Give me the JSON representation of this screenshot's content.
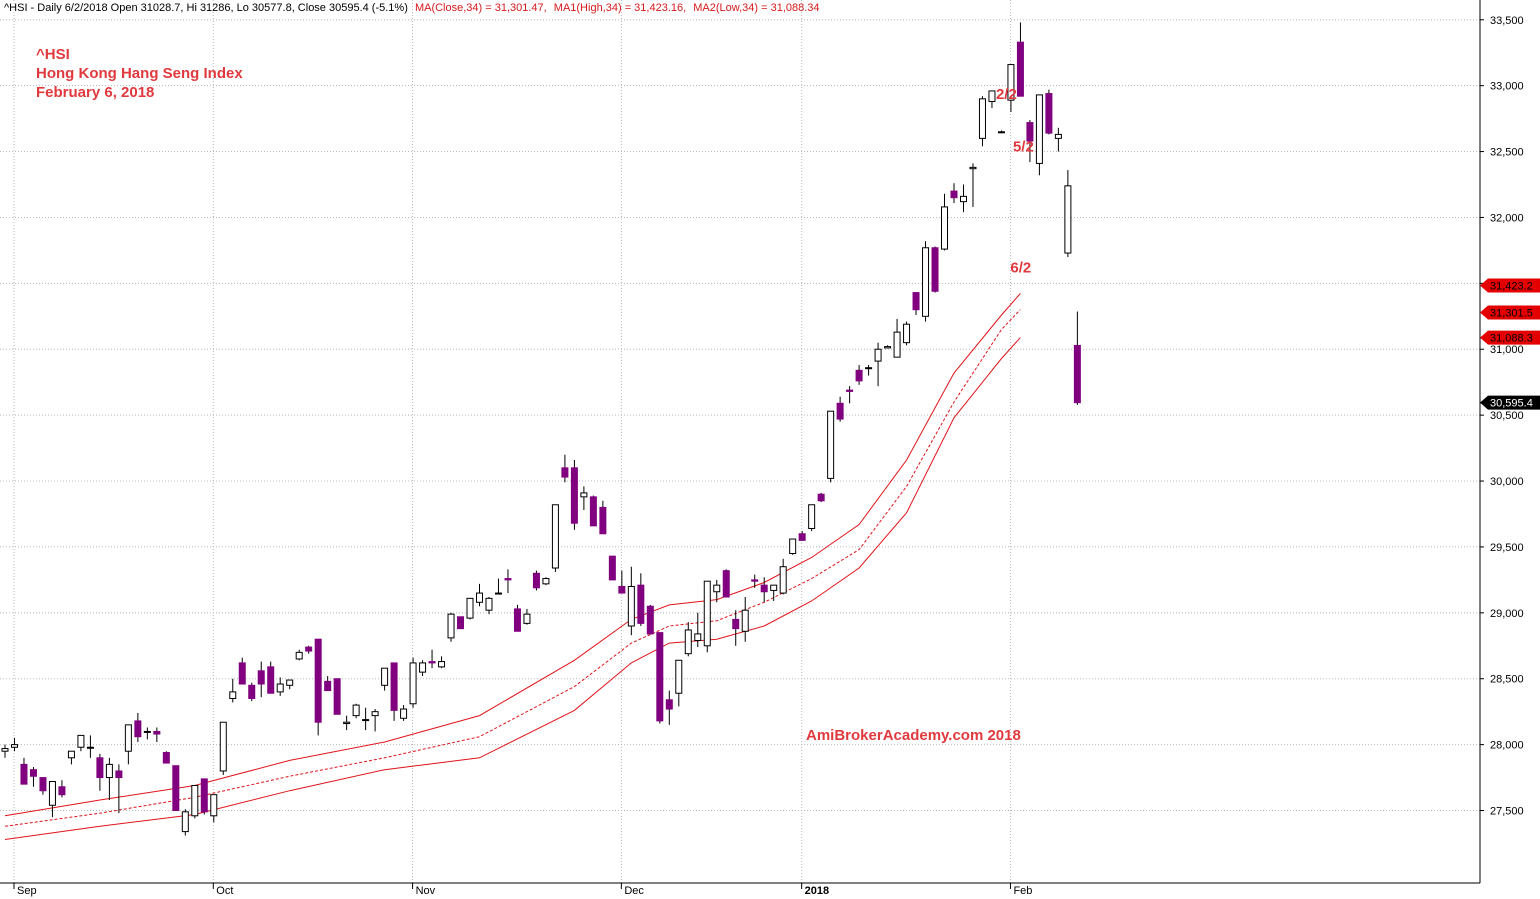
{
  "colors": {
    "up_fill": "#ffffff",
    "down_fill": "#800080",
    "candle_outline": "#000000",
    "ma_color": "#e0141a",
    "annotation_color": "#e0393e",
    "grid_color": "#b8b8b8",
    "header_text": "#000000",
    "header_ma_text": "#d7191c",
    "badge_red": "#e50000",
    "badge_black": "#000000"
  },
  "header": {
    "prefix": "^HSI - Daily 6/2/2018 Open 31028.7, Hi 31286, Lo 30577.8, Close 30595.4 (-5.1%)",
    "ma_close": "MA(Close,34) = 31,301.47,",
    "ma_high": "MA1(High,34) = 31,423.16,",
    "ma_low": "MA2(Low,34) = 31,088.34"
  },
  "title_block": {
    "symbol": "^HSI",
    "name": "Hong Kong Hang Seng Index",
    "date": "February 6, 2018"
  },
  "watermark": "AmiBrokerAcademy.com  2018",
  "chart_data": {
    "type": "candlestick",
    "ylim": [
      26950,
      33650
    ],
    "grid": true,
    "y_ticks": [
      "27,500",
      "28,000",
      "28,500",
      "29,000",
      "29,500",
      "30,000",
      "30,500",
      "31,000",
      "31,500",
      "32,000",
      "32,500",
      "33,000",
      "33,500"
    ],
    "y_tick_values": [
      27500,
      28000,
      28500,
      29000,
      29500,
      30000,
      30500,
      31000,
      31500,
      32000,
      32500,
      33000,
      33500
    ],
    "x_labels": [
      {
        "label": "Sep",
        "bar": 0,
        "bold": false
      },
      {
        "label": "Oct",
        "bar": 21,
        "bold": false
      },
      {
        "label": "Nov",
        "bar": 42,
        "bold": false
      },
      {
        "label": "Dec",
        "bar": 64,
        "bold": false
      },
      {
        "label": "2018",
        "bar": 83,
        "bold": true
      },
      {
        "label": "Feb",
        "bar": 105,
        "bold": false
      }
    ],
    "candles": [
      [
        27950,
        28000,
        27900,
        27970
      ],
      [
        27980,
        28050,
        27950,
        28000
      ],
      [
        27850,
        27900,
        27700,
        27700
      ],
      [
        27810,
        27830,
        27680,
        27760
      ],
      [
        27750,
        27750,
        27620,
        27650
      ],
      [
        27540,
        27720,
        27450,
        27720
      ],
      [
        27680,
        27730,
        27600,
        27620
      ],
      [
        27900,
        27950,
        27850,
        27950
      ],
      [
        27980,
        28070,
        27950,
        28070
      ],
      [
        27980,
        28070,
        27900,
        27980
      ],
      [
        27900,
        27930,
        27650,
        27750
      ],
      [
        27750,
        27900,
        27580,
        27850
      ],
      [
        27800,
        27850,
        27480,
        27750
      ],
      [
        27950,
        28150,
        27850,
        28150
      ],
      [
        28180,
        28240,
        28020,
        28060
      ],
      [
        28100,
        28130,
        28040,
        28100
      ],
      [
        28100,
        28130,
        28020,
        28080
      ],
      [
        27940,
        27950,
        27880,
        27860
      ],
      [
        27840,
        27840,
        27500,
        27500
      ],
      [
        27340,
        27510,
        27310,
        27490
      ],
      [
        27460,
        27690,
        27440,
        27690
      ],
      [
        27740,
        27740,
        27470,
        27490
      ],
      [
        27460,
        27610,
        27410,
        27620
      ],
      [
        27800,
        28170,
        27770,
        28170
      ],
      [
        28350,
        28500,
        28320,
        28400
      ],
      [
        28620,
        28660,
        28460,
        28460
      ],
      [
        28450,
        28470,
        28330,
        28350
      ],
      [
        28560,
        28630,
        28360,
        28460
      ],
      [
        28590,
        28630,
        28390,
        28390
      ],
      [
        28400,
        28510,
        28370,
        28460
      ],
      [
        28450,
        28490,
        28420,
        28490
      ],
      [
        28650,
        28720,
        28640,
        28700
      ],
      [
        28740,
        28750,
        28690,
        28710
      ],
      [
        28800,
        28800,
        28070,
        28170
      ],
      [
        28480,
        28520,
        28410,
        28410
      ],
      [
        28500,
        28500,
        28230,
        28230
      ],
      [
        28160,
        28220,
        28110,
        28170
      ],
      [
        28220,
        28310,
        28200,
        28300
      ],
      [
        28190,
        28280,
        28110,
        28190
      ],
      [
        28220,
        28270,
        28100,
        28250
      ],
      [
        28450,
        28560,
        28410,
        28580
      ],
      [
        28620,
        28620,
        28180,
        28260
      ],
      [
        28200,
        28300,
        28180,
        28270
      ],
      [
        28310,
        28660,
        28280,
        28620
      ],
      [
        28550,
        28640,
        28520,
        28620
      ],
      [
        28630,
        28720,
        28580,
        28620
      ],
      [
        28590,
        28670,
        28580,
        28630
      ],
      [
        28810,
        29000,
        28780,
        28990
      ],
      [
        28970,
        28960,
        28880,
        28880
      ],
      [
        28960,
        29110,
        28950,
        29110
      ],
      [
        29080,
        29220,
        29050,
        29150
      ],
      [
        29020,
        29120,
        28990,
        29110
      ],
      [
        29150,
        29260,
        29140,
        29150
      ],
      [
        29260,
        29330,
        29150,
        29250
      ],
      [
        29030,
        29060,
        28860,
        28860
      ],
      [
        28920,
        29030,
        28910,
        28990
      ],
      [
        29300,
        29320,
        29170,
        29190
      ],
      [
        29220,
        29270,
        29210,
        29260
      ],
      [
        29340,
        29810,
        29310,
        29820
      ],
      [
        30100,
        30200,
        29990,
        30030
      ],
      [
        30100,
        30160,
        29630,
        29680
      ],
      [
        29880,
        29960,
        29780,
        29910
      ],
      [
        29880,
        29890,
        29670,
        29660
      ],
      [
        29800,
        29850,
        29630,
        29600
      ],
      [
        29430,
        29430,
        29280,
        29250
      ],
      [
        29200,
        29320,
        29150,
        29150
      ],
      [
        28900,
        29350,
        28830,
        29200
      ],
      [
        29210,
        29300,
        28900,
        28920
      ],
      [
        29050,
        29060,
        28880,
        28840
      ],
      [
        28850,
        28850,
        28160,
        28180
      ],
      [
        28340,
        28410,
        28150,
        28270
      ],
      [
        28390,
        28620,
        28290,
        28640
      ],
      [
        28690,
        28930,
        28670,
        28870
      ],
      [
        28790,
        29000,
        28740,
        28840
      ],
      [
        28750,
        29240,
        28700,
        29240
      ],
      [
        29160,
        29250,
        29080,
        29210
      ],
      [
        29320,
        29330,
        29130,
        29120
      ],
      [
        28950,
        29020,
        28750,
        28880
      ],
      [
        28860,
        29120,
        28780,
        29020
      ],
      [
        29250,
        29290,
        29190,
        29240
      ],
      [
        29210,
        29270,
        29080,
        29160
      ],
      [
        29170,
        29210,
        29090,
        29210
      ],
      [
        29150,
        29410,
        29140,
        29350
      ],
      [
        29450,
        29560,
        29440,
        29560
      ],
      [
        29600,
        29620,
        29550,
        29550
      ],
      [
        29640,
        29820,
        29620,
        29820
      ],
      [
        29900,
        29910,
        29840,
        29850
      ],
      [
        30020,
        30530,
        29990,
        30530
      ],
      [
        30590,
        30640,
        30450,
        30470
      ],
      [
        30690,
        30720,
        30590,
        30680
      ],
      [
        30840,
        30880,
        30730,
        30760
      ],
      [
        30860,
        30880,
        30800,
        30860
      ],
      [
        30910,
        31050,
        30720,
        31000
      ],
      [
        31010,
        31030,
        31020,
        31020
      ],
      [
        30940,
        31230,
        30940,
        31130
      ],
      [
        31050,
        31210,
        31030,
        31190
      ],
      [
        31430,
        31430,
        31260,
        31300
      ],
      [
        31250,
        31820,
        31210,
        31770
      ],
      [
        31770,
        31780,
        31430,
        31440
      ],
      [
        31760,
        32180,
        31750,
        32080
      ],
      [
        32200,
        32260,
        32110,
        32150
      ],
      [
        32120,
        32250,
        32040,
        32160
      ],
      [
        32370,
        32410,
        32080,
        32380
      ],
      [
        32600,
        32920,
        32540,
        32900
      ],
      [
        32880,
        32960,
        32830,
        32960
      ],
      [
        32650,
        32660,
        32650,
        32650
      ],
      [
        32890,
        33160,
        32800,
        33160
      ],
      [
        33330,
        33480,
        32930,
        32920
      ],
      [
        32720,
        32740,
        32420,
        32580
      ],
      [
        32410,
        32900,
        32320,
        32930
      ],
      [
        32940,
        32970,
        32630,
        32640
      ],
      [
        32600,
        32680,
        32500,
        32630
      ],
      [
        31730,
        32360,
        31700,
        32240
      ],
      [
        31029,
        31286,
        30578,
        30595
      ]
    ],
    "ma_close": [
      [
        0,
        27380
      ],
      [
        10,
        27480
      ],
      [
        20,
        27600
      ],
      [
        30,
        27760
      ],
      [
        40,
        27900
      ],
      [
        50,
        28060
      ],
      [
        60,
        28440
      ],
      [
        66,
        28770
      ],
      [
        70,
        28900
      ],
      [
        75,
        28940
      ],
      [
        80,
        29080
      ],
      [
        85,
        29260
      ],
      [
        90,
        29480
      ],
      [
        95,
        29960
      ],
      [
        100,
        30600
      ],
      [
        105,
        31150
      ],
      [
        107,
        31301
      ]
    ],
    "ma_high": [
      [
        0,
        27460
      ],
      [
        10,
        27580
      ],
      [
        20,
        27690
      ],
      [
        30,
        27880
      ],
      [
        40,
        28020
      ],
      [
        50,
        28220
      ],
      [
        60,
        28640
      ],
      [
        66,
        28950
      ],
      [
        70,
        29060
      ],
      [
        75,
        29100
      ],
      [
        80,
        29230
      ],
      [
        85,
        29420
      ],
      [
        90,
        29670
      ],
      [
        95,
        30160
      ],
      [
        100,
        30820
      ],
      [
        105,
        31260
      ],
      [
        107,
        31423
      ]
    ],
    "ma_low": [
      [
        0,
        27280
      ],
      [
        10,
        27380
      ],
      [
        20,
        27470
      ],
      [
        30,
        27650
      ],
      [
        40,
        27810
      ],
      [
        50,
        27900
      ],
      [
        60,
        28260
      ],
      [
        66,
        28620
      ],
      [
        70,
        28770
      ],
      [
        75,
        28800
      ],
      [
        80,
        28900
      ],
      [
        85,
        29090
      ],
      [
        90,
        29340
      ],
      [
        95,
        29760
      ],
      [
        100,
        30480
      ],
      [
        105,
        30930
      ],
      [
        107,
        31088
      ]
    ],
    "annotations": [
      {
        "label": "2/2",
        "bar": 104,
        "price": 32900,
        "dx": 4,
        "dy": 0
      },
      {
        "label": "5/2",
        "bar": 106,
        "price": 32500,
        "dx": 2,
        "dy": 0
      },
      {
        "label": "6/2",
        "bar": 107,
        "price": 31460,
        "dx": -10,
        "dy": -16
      }
    ],
    "price_badges": [
      {
        "label": "31,423.2",
        "value": 31423.16,
        "color": "red",
        "dy": -8
      },
      {
        "label": "31,301.5",
        "value": 31301.47,
        "color": "red",
        "dy": 3
      },
      {
        "label": "31,088.3",
        "value": 31088.34,
        "color": "red",
        "dy": 0
      },
      {
        "label": "30,595.4",
        "value": 30595.4,
        "color": "black",
        "dy": 0
      }
    ]
  }
}
